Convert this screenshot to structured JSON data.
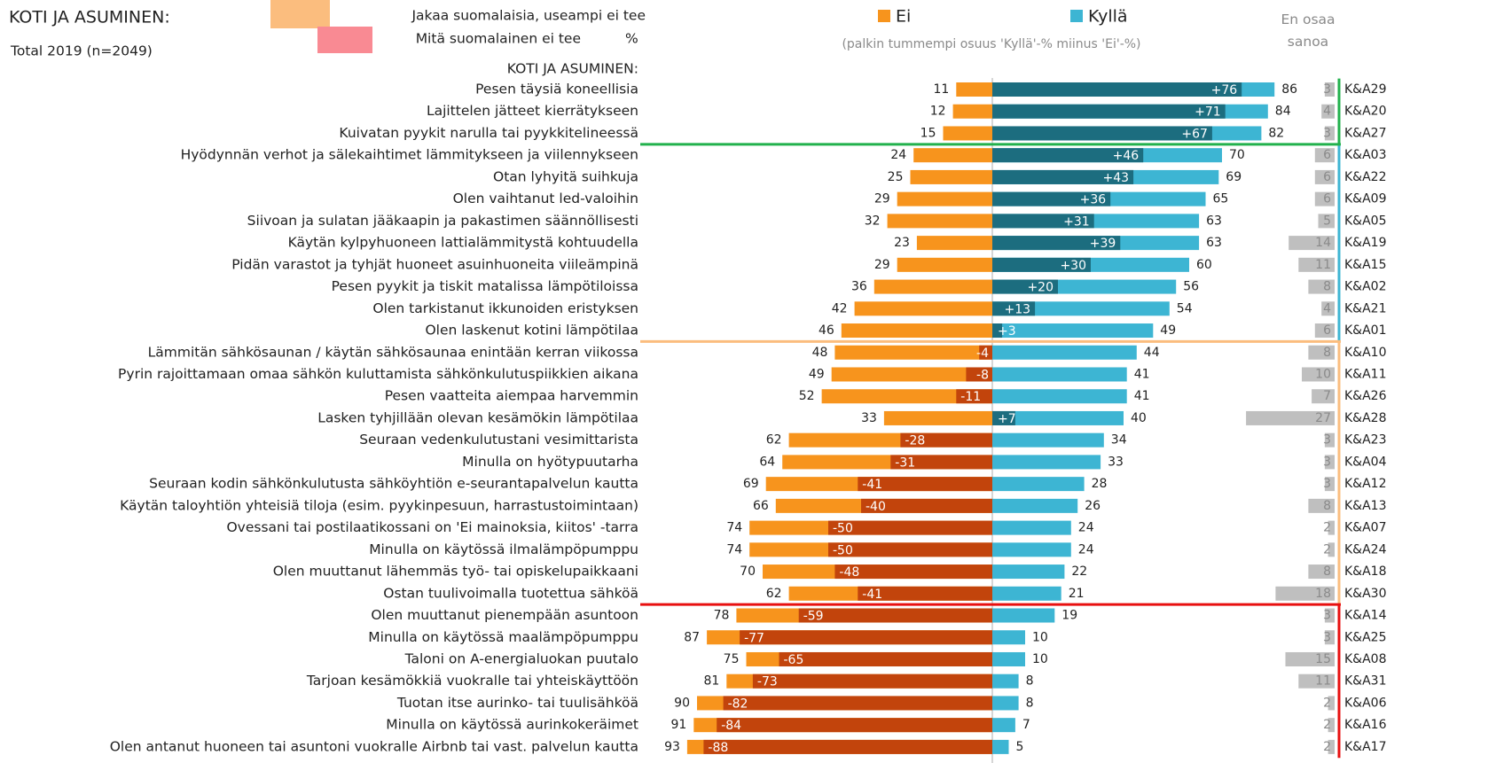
{
  "chart_data": {
    "type": "diverging-bar",
    "title": "KOTI JA ASUMINEN:",
    "subtitle": "Total 2019 (n=2049)",
    "note": "(palkin tummempi osuus 'Kyllä'-% miinus 'Ei'-%)",
    "legend_items": [
      {
        "label": "Jakaa suomalaisia, useampi ei tee",
        "color": "#fbbd7e"
      },
      {
        "label": "Mitä suomalainen ei tee",
        "color": "#f98a93"
      }
    ],
    "unit": "%",
    "dont_know_label": "En osaa sanoa",
    "section_header": "KOTI JA ASUMINEN:",
    "categories": [
      "Pesen täysiä koneellisia",
      "Lajittelen jätteet kierrätykseen",
      "Kuivatan pyykit narulla tai pyykkitelineessä",
      "Hyödynnän verhot ja sälekaihtimet lämmitykseen ja viilennykseen",
      "Otan lyhyitä suihkuja",
      "Olen vaihtanut led-valoihin",
      "Siivoan ja sulatan jääkaapin ja pakastimen säännöllisesti",
      "Käytän kylpyhuoneen lattialämmitystä kohtuudella",
      "Pidän varastot ja tyhjät huoneet asuinhuoneita viileämpinä",
      "Pesen pyykit ja tiskit matalissa lämpötiloissa",
      "Olen tarkistanut ikkunoiden eristyksen",
      "Olen laskenut kotini lämpötilaa",
      "Lämmitän sähkösaunan / käytän sähkösaunaa enintään kerran viikossa",
      "Pyrin rajoittamaan omaa sähkön kuluttamista sähkönkulutuspiikkien aikana",
      "Pesen vaatteita aiempaa harvemmin",
      "Lasken tyhjillään olevan kesämökin lämpötilaa",
      "Seuraan vedenkulutustani vesimittarista",
      "Minulla on hyötypuutarha",
      "Seuraan kodin sähkönkulutusta sähköyhtiön e-seurantapalvelun kautta",
      "Käytän taloyhtiön yhteisiä tiloja (esim. pyykinpesuun, harrastustoimintaan)",
      "Ovessani tai postilaatikossani on 'Ei mainoksia, kiitos' -tarra",
      "Minulla on käytössä ilmalämpöpumppu",
      "Olen muuttanut lähemmäs työ- tai opiskelupaikkaani",
      "Ostan tuulivoimalla tuotettua sähköä",
      "Olen muuttanut pienempään asuntoon",
      "Minulla on käytössä maalämpöpumppu",
      "Taloni on A-energialuokan puutalo",
      "Tarjoan kesämökkiä vuokralle tai yhteiskäyttöön",
      "Tuotan itse aurinko- tai tuulisähköä",
      "Minulla on käytössä aurinkokeräimet",
      "Olen antanut huoneen tai asuntoni vuokralle Airbnb tai vast. palvelun kautta"
    ],
    "codes": [
      "K&A29",
      "K&A20",
      "K&A27",
      "K&A03",
      "K&A22",
      "K&A09",
      "K&A05",
      "K&A19",
      "K&A15",
      "K&A02",
      "K&A21",
      "K&A01",
      "K&A10",
      "K&A11",
      "K&A26",
      "K&A28",
      "K&A23",
      "K&A04",
      "K&A12",
      "K&A13",
      "K&A07",
      "K&A24",
      "K&A18",
      "K&A30",
      "K&A14",
      "K&A25",
      "K&A08",
      "K&A31",
      "K&A06",
      "K&A16",
      "K&A17"
    ],
    "series": [
      {
        "name": "Ei",
        "color": "#f7941d",
        "values": [
          11,
          12,
          15,
          24,
          25,
          29,
          32,
          23,
          29,
          36,
          42,
          46,
          48,
          49,
          52,
          33,
          62,
          64,
          69,
          66,
          74,
          74,
          70,
          62,
          78,
          87,
          75,
          81,
          90,
          91,
          93
        ]
      },
      {
        "name": "Kyllä",
        "color": "#3db5d3",
        "values": [
          86,
          84,
          82,
          70,
          69,
          65,
          63,
          63,
          60,
          56,
          54,
          49,
          44,
          41,
          41,
          40,
          34,
          33,
          28,
          26,
          24,
          24,
          22,
          21,
          19,
          10,
          10,
          8,
          8,
          7,
          5
        ]
      }
    ],
    "net": {
      "color_positive": "#1c6d7f",
      "color_negative": "#c2440c",
      "values": [
        76,
        71,
        67,
        46,
        43,
        36,
        31,
        39,
        30,
        20,
        13,
        3,
        -4,
        -8,
        -11,
        7,
        -28,
        -31,
        -41,
        -40,
        -50,
        -50,
        -48,
        -41,
        -59,
        -77,
        -65,
        -73,
        -82,
        -84,
        -88
      ],
      "value_labels": [
        "+76",
        "+71",
        "+67",
        "+46",
        "+43",
        "+36",
        "+31",
        "+39",
        "+30",
        "+20",
        "+13",
        "+3",
        "-4",
        "-8",
        "-11",
        "+7",
        "-28",
        "-31",
        "-41",
        "-40",
        "-50",
        "-50",
        "-48",
        "-41",
        "-59",
        "-77",
        "-65",
        "-73",
        "-82",
        "-84",
        "-88"
      ]
    },
    "dont_know": {
      "color": "#bfbfbf",
      "values": [
        3,
        4,
        3,
        6,
        6,
        6,
        5,
        14,
        11,
        8,
        4,
        6,
        8,
        10,
        7,
        27,
        3,
        3,
        3,
        8,
        2,
        2,
        8,
        18,
        3,
        3,
        15,
        11,
        2,
        2,
        2
      ]
    },
    "groups": [
      {
        "color": "#22b14c",
        "size": 3
      },
      {
        "color": "#3db5d3",
        "size": 9
      },
      {
        "color": "#fbbd7e",
        "size": 12
      },
      {
        "color": "#e81010",
        "size": 7
      }
    ]
  }
}
